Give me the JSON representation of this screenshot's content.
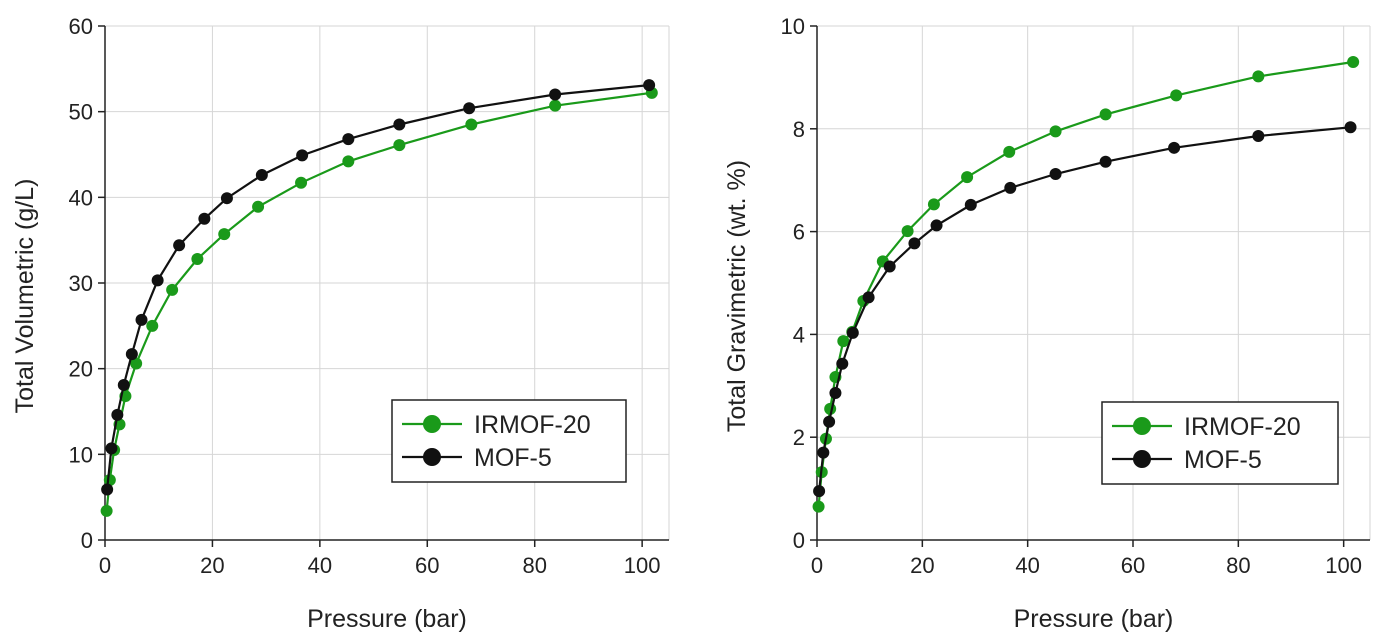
{
  "chart_data": [
    {
      "type": "line",
      "xlabel": "Pressure (bar)",
      "ylabel": "Total Volumetric (g/L)",
      "xlim": [
        0,
        105
      ],
      "ylim": [
        0,
        60
      ],
      "xticks": [
        "0",
        "20",
        "40",
        "60",
        "80",
        "100"
      ],
      "yticks": [
        "0",
        "10",
        "20",
        "30",
        "40",
        "50",
        "60"
      ],
      "grid": true,
      "legend_position": "bottom-right",
      "series": [
        {
          "name": "IRMOF-20",
          "color": "#1a9a1a",
          "x": [
            0.3,
            0.9,
            1.7,
            2.7,
            3.8,
            5.8,
            8.8,
            12.5,
            17.2,
            22.2,
            28.5,
            36.5,
            45.3,
            54.8,
            68.2,
            83.8,
            101.8
          ],
          "y": [
            3.4,
            7.0,
            10.5,
            13.5,
            16.8,
            20.6,
            25.0,
            29.2,
            32.8,
            35.7,
            38.9,
            41.7,
            44.2,
            46.1,
            48.5,
            50.7,
            52.2
          ]
        },
        {
          "name": "MOF-5",
          "color": "#111111",
          "x": [
            0.4,
            1.2,
            2.3,
            3.5,
            5.0,
            6.8,
            9.8,
            13.8,
            18.5,
            22.7,
            29.2,
            36.7,
            45.3,
            54.8,
            67.8,
            83.8,
            101.3
          ],
          "y": [
            5.9,
            10.7,
            14.6,
            18.1,
            21.7,
            25.7,
            30.3,
            34.4,
            37.5,
            39.9,
            42.6,
            44.9,
            46.8,
            48.5,
            50.4,
            52.0,
            53.1
          ]
        }
      ]
    },
    {
      "type": "line",
      "xlabel": "Pressure (bar)",
      "ylabel": "Total Gravimetric (wt. %)",
      "xlim": [
        0,
        105
      ],
      "ylim": [
        0,
        10
      ],
      "xticks": [
        "0",
        "20",
        "40",
        "60",
        "80",
        "100"
      ],
      "yticks": [
        "0",
        "2",
        "4",
        "6",
        "8",
        "10"
      ],
      "grid": true,
      "legend_position": "bottom-right",
      "series": [
        {
          "name": "IRMOF-20",
          "color": "#1a9a1a",
          "x": [
            0.3,
            0.9,
            1.7,
            2.5,
            3.5,
            5.0,
            6.7,
            8.8,
            12.5,
            17.2,
            22.2,
            28.5,
            36.5,
            45.3,
            54.8,
            68.2,
            83.8,
            101.8
          ],
          "y": [
            0.65,
            1.32,
            1.97,
            2.55,
            3.17,
            3.87,
            4.05,
            4.65,
            5.42,
            6.01,
            6.53,
            7.06,
            7.55,
            7.95,
            8.28,
            8.65,
            9.02,
            9.3
          ]
        },
        {
          "name": "MOF-5",
          "color": "#111111",
          "x": [
            0.4,
            1.2,
            2.3,
            3.5,
            4.8,
            6.8,
            9.8,
            13.8,
            18.5,
            22.7,
            29.2,
            36.7,
            45.3,
            54.8,
            67.8,
            83.8,
            101.3
          ],
          "y": [
            0.95,
            1.7,
            2.3,
            2.86,
            3.43,
            4.03,
            4.72,
            5.32,
            5.77,
            6.12,
            6.52,
            6.85,
            7.12,
            7.36,
            7.63,
            7.86,
            8.03
          ]
        }
      ]
    }
  ]
}
